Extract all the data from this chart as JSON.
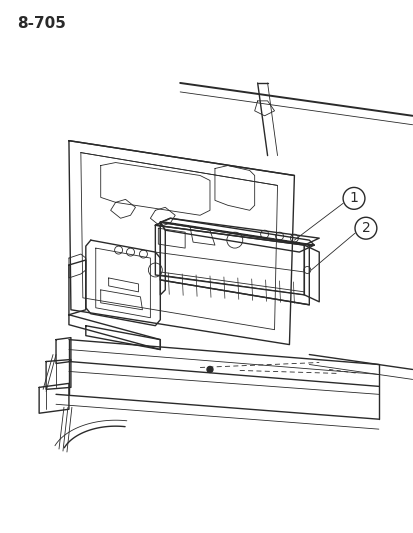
{
  "title": "8-705",
  "title_fontsize": 11,
  "title_fontweight": "bold",
  "bg_color": "#ffffff",
  "line_color": "#2a2a2a",
  "label1": "1",
  "label2": "2",
  "figsize": [
    4.14,
    5.33
  ],
  "dpi": 100,
  "lw_main": 1.0,
  "lw_thin": 0.6,
  "lw_thick": 1.4
}
